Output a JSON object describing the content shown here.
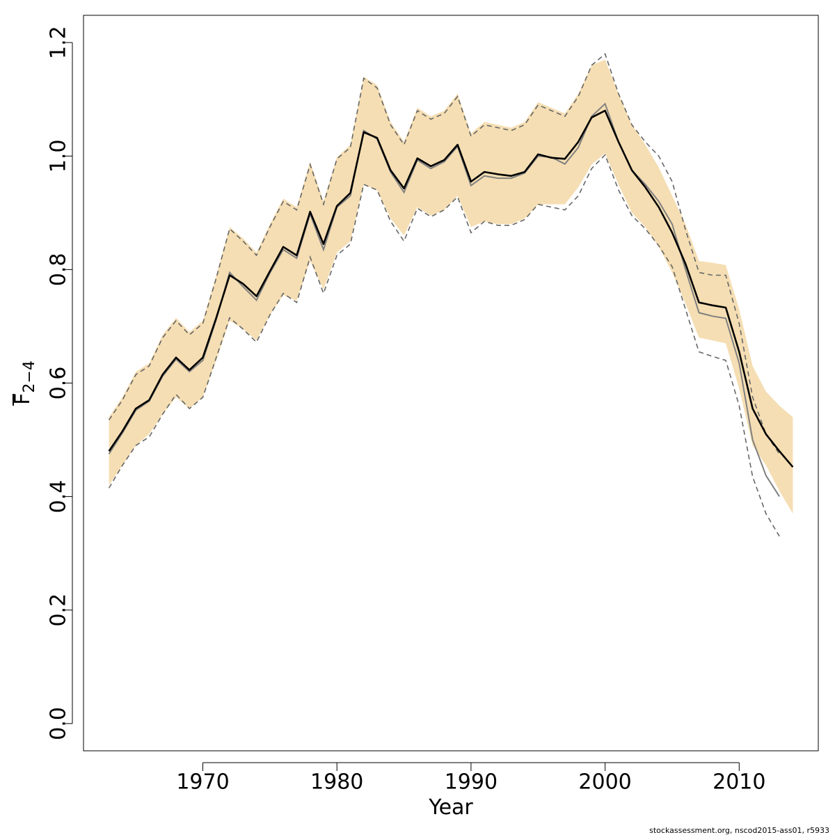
{
  "chart_data": {
    "type": "line",
    "xlabel": "Year",
    "ylabel_main": "F",
    "ylabel_sub": "2−4",
    "xlim": [
      1961.1,
      2015.9
    ],
    "ylim": [
      -0.048,
      1.248
    ],
    "x_ticks": [
      1970,
      1980,
      1990,
      2000,
      2010
    ],
    "y_ticks": [
      0.0,
      0.2,
      0.4,
      0.6,
      0.8,
      1.0,
      1.2
    ],
    "y_tick_labels": [
      "0.0",
      "0.2",
      "0.4",
      "0.6",
      "0.8",
      "1.0",
      "1.2"
    ],
    "grid": false,
    "colors": {
      "band": "#f5deb3",
      "current": "#000000",
      "previous": "#808080",
      "previous_ci": "#666666",
      "axis": "#000000"
    },
    "x": [
      1963,
      1964,
      1965,
      1966,
      1967,
      1968,
      1969,
      1970,
      1971,
      1972,
      1973,
      1974,
      1975,
      1976,
      1977,
      1978,
      1979,
      1980,
      1981,
      1982,
      1983,
      1984,
      1985,
      1986,
      1987,
      1988,
      1989,
      1990,
      1991,
      1992,
      1993,
      1994,
      1995,
      1996,
      1997,
      1998,
      1999,
      2000,
      2001,
      2002,
      2003,
      2004,
      2005,
      2006,
      2007,
      2008,
      2009,
      2010,
      2011,
      2012,
      2013,
      2014
    ],
    "series": [
      {
        "style": "confidence-band",
        "x": [
          1963,
          1964,
          1965,
          1966,
          1967,
          1968,
          1969,
          1970,
          1971,
          1972,
          1973,
          1974,
          1975,
          1976,
          1977,
          1978,
          1979,
          1980,
          1981,
          1982,
          1983,
          1984,
          1985,
          1986,
          1987,
          1988,
          1989,
          1990,
          1991,
          1992,
          1993,
          1994,
          1995,
          1996,
          1997,
          1998,
          1999,
          2000,
          2001,
          2002,
          2003,
          2004,
          2005,
          2006,
          2007,
          2008,
          2009,
          2010,
          2011,
          2012,
          2013,
          2014
        ],
        "upper": [
          0.54,
          0.575,
          0.62,
          0.635,
          0.685,
          0.715,
          0.69,
          0.71,
          0.79,
          0.875,
          0.855,
          0.83,
          0.88,
          0.925,
          0.91,
          0.99,
          0.92,
          0.998,
          1.02,
          1.14,
          1.125,
          1.06,
          1.025,
          1.085,
          1.07,
          1.08,
          1.11,
          1.04,
          1.06,
          1.055,
          1.05,
          1.06,
          1.095,
          1.085,
          1.075,
          1.11,
          1.16,
          1.17,
          1.11,
          1.055,
          1.02,
          0.98,
          0.93,
          0.88,
          0.815,
          0.812,
          0.808,
          0.73,
          0.63,
          0.585,
          0.56,
          0.54
        ],
        "lower": [
          0.42,
          0.455,
          0.49,
          0.51,
          0.545,
          0.575,
          0.555,
          0.575,
          0.64,
          0.71,
          0.695,
          0.675,
          0.72,
          0.755,
          0.745,
          0.815,
          0.765,
          0.83,
          0.85,
          0.95,
          0.94,
          0.89,
          0.86,
          0.91,
          0.895,
          0.905,
          0.93,
          0.875,
          0.885,
          0.88,
          0.88,
          0.89,
          0.915,
          0.915,
          0.915,
          0.945,
          0.985,
          1.005,
          0.95,
          0.9,
          0.875,
          0.84,
          0.795,
          0.74,
          0.68,
          0.675,
          0.67,
          0.59,
          0.49,
          0.455,
          0.41,
          0.37
        ]
      },
      {
        "style": "previous-ci-upper",
        "x": [
          1963,
          1964,
          1965,
          1966,
          1967,
          1968,
          1969,
          1970,
          1971,
          1972,
          1973,
          1974,
          1975,
          1976,
          1977,
          1978,
          1979,
          1980,
          1981,
          1982,
          1983,
          1984,
          1985,
          1986,
          1987,
          1988,
          1989,
          1990,
          1991,
          1992,
          1993,
          1994,
          1995,
          1996,
          1997,
          1998,
          1999,
          2000,
          2001,
          2002,
          2003,
          2004,
          2005,
          2006,
          2007,
          2008,
          2009,
          2010,
          2011,
          2012,
          2013
        ],
        "values": [
          0.535,
          0.57,
          0.615,
          0.63,
          0.68,
          0.71,
          0.685,
          0.705,
          0.785,
          0.872,
          0.85,
          0.825,
          0.875,
          0.92,
          0.905,
          0.985,
          0.915,
          0.995,
          1.015,
          1.137,
          1.12,
          1.055,
          1.02,
          1.08,
          1.065,
          1.075,
          1.105,
          1.035,
          1.055,
          1.05,
          1.045,
          1.055,
          1.09,
          1.08,
          1.07,
          1.105,
          1.16,
          1.18,
          1.11,
          1.055,
          1.025,
          1.0,
          0.955,
          0.87,
          0.795,
          0.79,
          0.79,
          0.705,
          0.575,
          0.51,
          0.475
        ]
      },
      {
        "style": "previous-ci-lower",
        "x": [
          1963,
          1964,
          1965,
          1966,
          1967,
          1968,
          1969,
          1970,
          1971,
          1972,
          1973,
          1974,
          1975,
          1976,
          1977,
          1978,
          1979,
          1980,
          1981,
          1982,
          1983,
          1984,
          1985,
          1986,
          1987,
          1988,
          1989,
          1990,
          1991,
          1992,
          1993,
          1994,
          1995,
          1996,
          1997,
          1998,
          1999,
          2000,
          2001,
          2002,
          2003,
          2004,
          2005,
          2006,
          2007,
          2008,
          2009,
          2010,
          2011,
          2012,
          2013
        ],
        "values": [
          0.415,
          0.455,
          0.49,
          0.505,
          0.545,
          0.58,
          0.555,
          0.575,
          0.645,
          0.715,
          0.695,
          0.672,
          0.72,
          0.758,
          0.742,
          0.822,
          0.758,
          0.825,
          0.845,
          0.95,
          0.94,
          0.885,
          0.85,
          0.908,
          0.893,
          0.905,
          0.928,
          0.865,
          0.885,
          0.878,
          0.878,
          0.888,
          0.915,
          0.91,
          0.905,
          0.93,
          0.978,
          1.002,
          0.94,
          0.895,
          0.872,
          0.842,
          0.805,
          0.73,
          0.655,
          0.647,
          0.64,
          0.56,
          0.435,
          0.37,
          0.33
        ]
      },
      {
        "style": "previous-estimate",
        "x": [
          1963,
          1964,
          1965,
          1966,
          1967,
          1968,
          1969,
          1970,
          1971,
          1972,
          1973,
          1974,
          1975,
          1976,
          1977,
          1978,
          1979,
          1980,
          1981,
          1982,
          1983,
          1984,
          1985,
          1986,
          1987,
          1988,
          1989,
          1990,
          1991,
          1992,
          1993,
          1994,
          1995,
          1996,
          1997,
          1998,
          1999,
          2000,
          2001,
          2002,
          2003,
          2004,
          2005,
          2006,
          2007,
          2008,
          2009,
          2010,
          2011,
          2012,
          2013
        ],
        "values": [
          0.475,
          0.512,
          0.552,
          0.568,
          0.612,
          0.642,
          0.62,
          0.64,
          0.712,
          0.795,
          0.77,
          0.746,
          0.794,
          0.835,
          0.82,
          0.898,
          0.835,
          0.91,
          0.93,
          1.045,
          1.03,
          0.972,
          0.936,
          0.993,
          0.978,
          0.99,
          1.017,
          0.948,
          0.965,
          0.961,
          0.961,
          0.97,
          1.0,
          0.998,
          0.986,
          1.015,
          1.07,
          1.092,
          1.025,
          0.975,
          0.95,
          0.92,
          0.88,
          0.8,
          0.724,
          0.718,
          0.714,
          0.635,
          0.5,
          0.437,
          0.4
        ]
      },
      {
        "style": "current-estimate",
        "x": [
          1963,
          1964,
          1965,
          1966,
          1967,
          1968,
          1969,
          1970,
          1971,
          1972,
          1973,
          1974,
          1975,
          1976,
          1977,
          1978,
          1979,
          1980,
          1981,
          1982,
          1983,
          1984,
          1985,
          1986,
          1987,
          1988,
          1989,
          1990,
          1991,
          1992,
          1993,
          1994,
          1995,
          1996,
          1997,
          1998,
          1999,
          2000,
          2001,
          2002,
          2003,
          2004,
          2005,
          2006,
          2007,
          2008,
          2009,
          2010,
          2011,
          2012,
          2013,
          2014
        ],
        "values": [
          0.48,
          0.515,
          0.555,
          0.57,
          0.615,
          0.645,
          0.623,
          0.645,
          0.715,
          0.79,
          0.775,
          0.753,
          0.797,
          0.84,
          0.825,
          0.902,
          0.845,
          0.912,
          0.935,
          1.042,
          1.032,
          0.975,
          0.943,
          0.996,
          0.982,
          0.993,
          1.02,
          0.955,
          0.972,
          0.968,
          0.965,
          0.972,
          1.003,
          0.997,
          0.995,
          1.025,
          1.068,
          1.08,
          1.025,
          0.975,
          0.945,
          0.91,
          0.865,
          0.81,
          0.742,
          0.737,
          0.733,
          0.655,
          0.555,
          0.51,
          0.48,
          0.452
        ]
      }
    ]
  },
  "footer": {
    "credit": "stockassessment.org, nscod2015-ass01, r5933"
  }
}
